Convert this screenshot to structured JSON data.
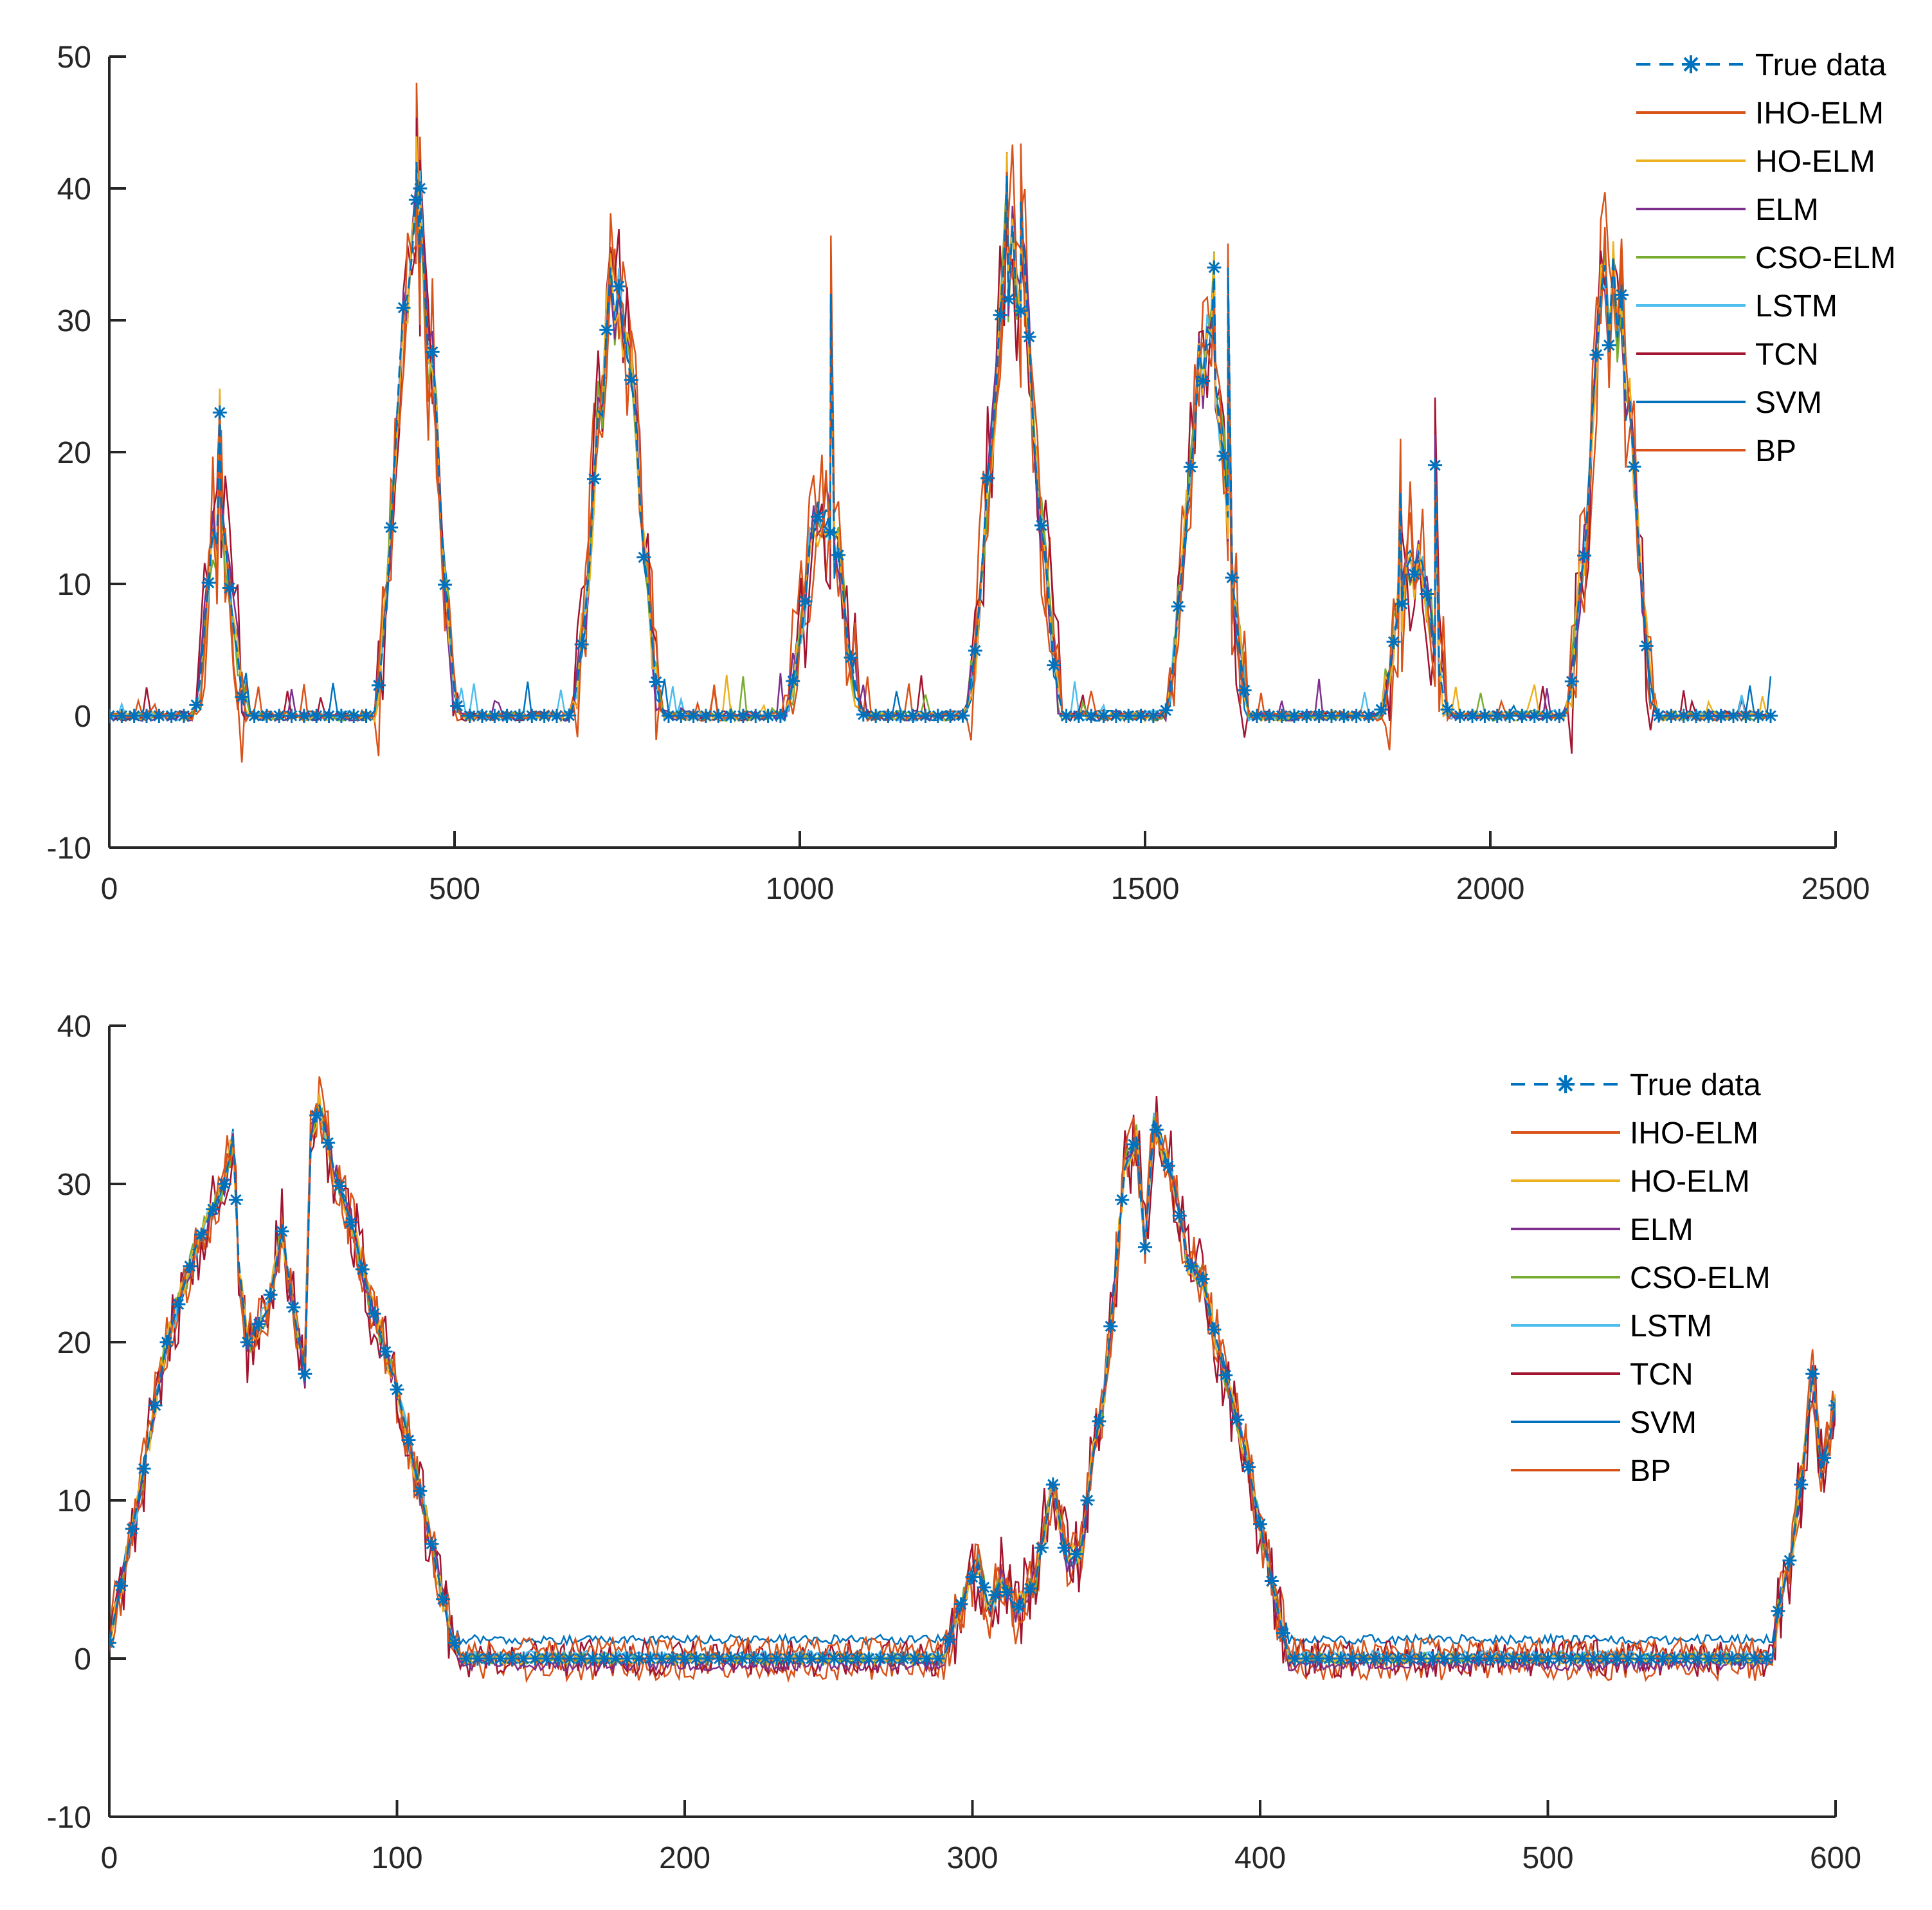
{
  "chart_data": [
    {
      "type": "line",
      "title": "",
      "xlabel": "",
      "ylabel": "",
      "xlim": [
        0,
        2500
      ],
      "ylim": [
        -10,
        50
      ],
      "xticks": [
        "0",
        "500",
        "1000",
        "1500",
        "2000",
        "2500"
      ],
      "xtick_values": [
        0,
        500,
        1000,
        1500,
        2000,
        2500
      ],
      "yticks": [
        "-10",
        "0",
        "10",
        "20",
        "30",
        "40",
        "50"
      ],
      "ytick_values": [
        -10,
        0,
        10,
        20,
        30,
        40,
        50
      ],
      "legend_position": "top-right",
      "legend": [
        "True data",
        "IHO-ELM",
        "HO-ELM",
        "ELM",
        "CSO-ELM",
        "LSTM",
        "TCN",
        "SVM",
        "BP"
      ],
      "colors": [
        "#0072BD",
        "#D95319",
        "#EDB120",
        "#7E2F8E",
        "#77AC30",
        "#4DBEEE",
        "#A2142F",
        "#0072BD",
        "#D95319"
      ],
      "peaks": [
        {
          "center": 160,
          "height": 15,
          "width": 80
        },
        {
          "center": 445,
          "height": 36,
          "width": 130
        },
        {
          "center": 735,
          "height": 32,
          "width": 140
        },
        {
          "center": 1035,
          "height": 16,
          "width": 120
        },
        {
          "center": 1310,
          "height": 34,
          "width": 150
        },
        {
          "center": 1590,
          "height": 28,
          "width": 130
        },
        {
          "center": 1890,
          "height": 12,
          "width": 110
        },
        {
          "center": 2175,
          "height": 32,
          "width": 140
        }
      ],
      "spikes": [
        [
          160,
          23
        ],
        [
          445,
          42
        ],
        [
          450,
          40
        ],
        [
          1045,
          32
        ],
        [
          1300,
          41
        ],
        [
          1320,
          39
        ],
        [
          1600,
          34
        ],
        [
          1620,
          34
        ],
        [
          1870,
          17
        ],
        [
          1920,
          19
        ]
      ],
      "n_points": 2410
    },
    {
      "type": "line",
      "title": "",
      "xlabel": "",
      "ylabel": "",
      "xlim": [
        0,
        600
      ],
      "ylim": [
        -10,
        40
      ],
      "xticks": [
        "0",
        "100",
        "200",
        "300",
        "400",
        "500",
        "600"
      ],
      "xtick_values": [
        0,
        100,
        200,
        300,
        400,
        500,
        600
      ],
      "yticks": [
        "-10",
        "0",
        "10",
        "20",
        "30",
        "40"
      ],
      "ytick_values": [
        -10,
        0,
        10,
        20,
        30,
        40
      ],
      "legend_position": "top-right",
      "legend": [
        "True data",
        "IHO-ELM",
        "HO-ELM",
        "ELM",
        "CSO-ELM",
        "LSTM",
        "TCN",
        "SVM",
        "BP"
      ],
      "colors": [
        "#0072BD",
        "#D95319",
        "#EDB120",
        "#7E2F8E",
        "#77AC30",
        "#4DBEEE",
        "#A2142F",
        "#0072BD",
        "#D95319"
      ],
      "true_points": [
        [
          0,
          1
        ],
        [
          10,
          10
        ],
        [
          20,
          20
        ],
        [
          30,
          26
        ],
        [
          40,
          30
        ],
        [
          43,
          33
        ],
        [
          45,
          25
        ],
        [
          48,
          20
        ],
        [
          55,
          22
        ],
        [
          60,
          27
        ],
        [
          65,
          21
        ],
        [
          68,
          18
        ],
        [
          70,
          33
        ],
        [
          73,
          35
        ],
        [
          78,
          31
        ],
        [
          85,
          27
        ],
        [
          90,
          23
        ],
        [
          100,
          17
        ],
        [
          110,
          9
        ],
        [
          118,
          2
        ],
        [
          122,
          0
        ],
        [
          290,
          0
        ],
        [
          295,
          3
        ],
        [
          302,
          6
        ],
        [
          306,
          3
        ],
        [
          310,
          5
        ],
        [
          315,
          3
        ],
        [
          322,
          5
        ],
        [
          328,
          11
        ],
        [
          333,
          6
        ],
        [
          338,
          7
        ],
        [
          342,
          13
        ],
        [
          346,
          17
        ],
        [
          350,
          25
        ],
        [
          353,
          31
        ],
        [
          357,
          33
        ],
        [
          360,
          26
        ],
        [
          363,
          34
        ],
        [
          370,
          30
        ],
        [
          375,
          25
        ],
        [
          380,
          24
        ],
        [
          385,
          20
        ],
        [
          395,
          13
        ],
        [
          405,
          4
        ],
        [
          410,
          0
        ],
        [
          578,
          0
        ],
        [
          580,
          3
        ],
        [
          585,
          7
        ],
        [
          588,
          11
        ],
        [
          592,
          18
        ],
        [
          595,
          12
        ],
        [
          598,
          14
        ],
        [
          600,
          16
        ]
      ],
      "n_points": 601
    }
  ]
}
